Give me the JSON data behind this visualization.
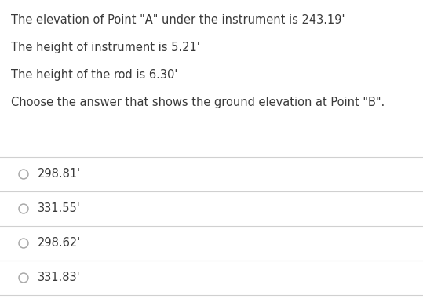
{
  "background_color": "#ffffff",
  "text_color": "#3a3a3a",
  "info_lines": [
    "The elevation of Point \"A\" under the instrument is 243.19'",
    "The height of instrument is 5.21'",
    "The height of the rod is 6.30'",
    "Choose the answer that shows the ground elevation at Point \"B\"."
  ],
  "choices": [
    "298.81'",
    "331.55'",
    "298.62'",
    "331.83'"
  ],
  "divider_color": "#d0d0d0",
  "circle_color": "#aaaaaa",
  "font_size_info": 10.5,
  "font_size_choice": 10.5,
  "fig_width": 5.39,
  "fig_height": 3.81,
  "dpi": 100
}
